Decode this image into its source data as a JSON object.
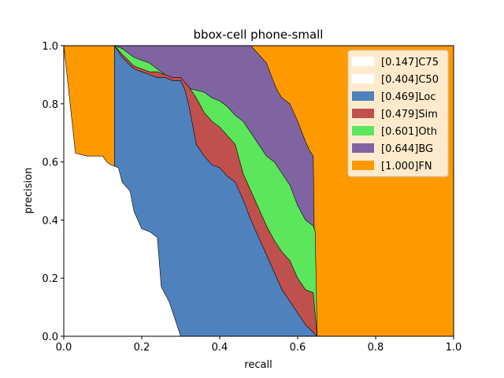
{
  "chart_data": {
    "type": "area",
    "title": "bbox-cell phone-small",
    "xlabel": "recall",
    "ylabel": "precision",
    "xlim": [
      0,
      1
    ],
    "ylim": [
      0,
      1
    ],
    "xticks": [
      "0.0",
      "0.2",
      "0.4",
      "0.6",
      "0.8",
      "1.0"
    ],
    "yticks": [
      "0.0",
      "0.2",
      "0.4",
      "0.6",
      "0.8",
      "1.0"
    ],
    "grid": false,
    "legend_position": "top-right",
    "legend": [
      {
        "label": "[0.147]C75",
        "color": "#ffffff"
      },
      {
        "label": "[0.404]C50",
        "color": "#ffffff"
      },
      {
        "label": "[0.469]Loc",
        "color": "#4f81bd"
      },
      {
        "label": "[0.479]Sim",
        "color": "#c0504d"
      },
      {
        "label": "[0.601]Oth",
        "color": "#5ce65c"
      },
      {
        "label": "[0.644]BG",
        "color": "#8064a2"
      },
      {
        "label": "[1.000]FN",
        "color": "#ff9900"
      }
    ],
    "series": [
      {
        "name": "[1.000]FN",
        "color": "#ff9900",
        "x": [
          0,
          1
        ],
        "y": [
          1.0,
          1.0
        ]
      },
      {
        "name": "[0.644]BG",
        "color": "#8064a2",
        "x": [
          0.13,
          0.38,
          0.4,
          0.48,
          0.52,
          0.54,
          0.55,
          0.56,
          0.58,
          0.6,
          0.62,
          0.63,
          0.64,
          0.645,
          0.65
        ],
        "y": [
          1.0,
          1.0,
          1.0,
          1.0,
          0.94,
          0.87,
          0.84,
          0.82,
          0.8,
          0.74,
          0.67,
          0.64,
          0.62,
          0.1,
          0.0
        ]
      },
      {
        "name": "[0.601]Oth",
        "color": "#5ce65c",
        "x": [
          0.13,
          0.15,
          0.18,
          0.2,
          0.22,
          0.24,
          0.26,
          0.28,
          0.3,
          0.33,
          0.36,
          0.38,
          0.4,
          0.42,
          0.44,
          0.46,
          0.48,
          0.5,
          0.52,
          0.54,
          0.56,
          0.58,
          0.6,
          0.62,
          0.64,
          0.645,
          0.65
        ],
        "y": [
          1.0,
          0.99,
          0.96,
          0.95,
          0.94,
          0.92,
          0.9,
          0.88,
          0.86,
          0.85,
          0.84,
          0.82,
          0.81,
          0.79,
          0.76,
          0.74,
          0.7,
          0.66,
          0.62,
          0.6,
          0.56,
          0.52,
          0.45,
          0.4,
          0.38,
          0.36,
          0.0
        ]
      },
      {
        "name": "[0.479]Sim",
        "color": "#c0504d",
        "x": [
          0.13,
          0.15,
          0.18,
          0.2,
          0.22,
          0.24,
          0.26,
          0.28,
          0.3,
          0.32,
          0.34,
          0.36,
          0.38,
          0.4,
          0.42,
          0.44,
          0.46,
          0.48,
          0.5,
          0.52,
          0.54,
          0.56,
          0.58,
          0.6,
          0.62,
          0.64,
          0.65
        ],
        "y": [
          1.0,
          0.97,
          0.93,
          0.92,
          0.91,
          0.91,
          0.9,
          0.89,
          0.89,
          0.86,
          0.82,
          0.77,
          0.74,
          0.72,
          0.69,
          0.66,
          0.56,
          0.5,
          0.44,
          0.38,
          0.33,
          0.29,
          0.26,
          0.2,
          0.16,
          0.15,
          0.0
        ]
      },
      {
        "name": "[0.469]Loc",
        "color": "#4f81bd",
        "x": [
          0.13,
          0.15,
          0.18,
          0.2,
          0.22,
          0.24,
          0.26,
          0.28,
          0.3,
          0.31,
          0.32,
          0.33,
          0.34,
          0.36,
          0.38,
          0.4,
          0.42,
          0.44,
          0.46,
          0.48,
          0.5,
          0.52,
          0.54,
          0.56,
          0.58,
          0.6,
          0.62,
          0.65
        ],
        "y": [
          1.0,
          0.96,
          0.92,
          0.91,
          0.9,
          0.89,
          0.89,
          0.88,
          0.88,
          0.85,
          0.8,
          0.73,
          0.66,
          0.62,
          0.59,
          0.58,
          0.55,
          0.53,
          0.47,
          0.4,
          0.34,
          0.28,
          0.22,
          0.16,
          0.12,
          0.08,
          0.04,
          0.0
        ]
      },
      {
        "name": "[0.404]C50",
        "color": "#ffffff",
        "x": [
          0.0,
          0.03,
          0.06,
          0.09,
          0.1,
          0.11,
          0.12,
          0.14,
          0.15,
          0.17,
          0.18,
          0.2,
          0.22,
          0.24,
          0.25,
          0.27,
          0.3
        ],
        "y": [
          1.0,
          0.63,
          0.62,
          0.62,
          0.62,
          0.6,
          0.59,
          0.58,
          0.53,
          0.5,
          0.43,
          0.37,
          0.36,
          0.34,
          0.17,
          0.12,
          0.0
        ]
      },
      {
        "name": "[0.147]C75",
        "color": "#ffffff",
        "x": [
          0.0,
          0.3
        ],
        "y": [
          0.0,
          0.0
        ]
      }
    ]
  }
}
